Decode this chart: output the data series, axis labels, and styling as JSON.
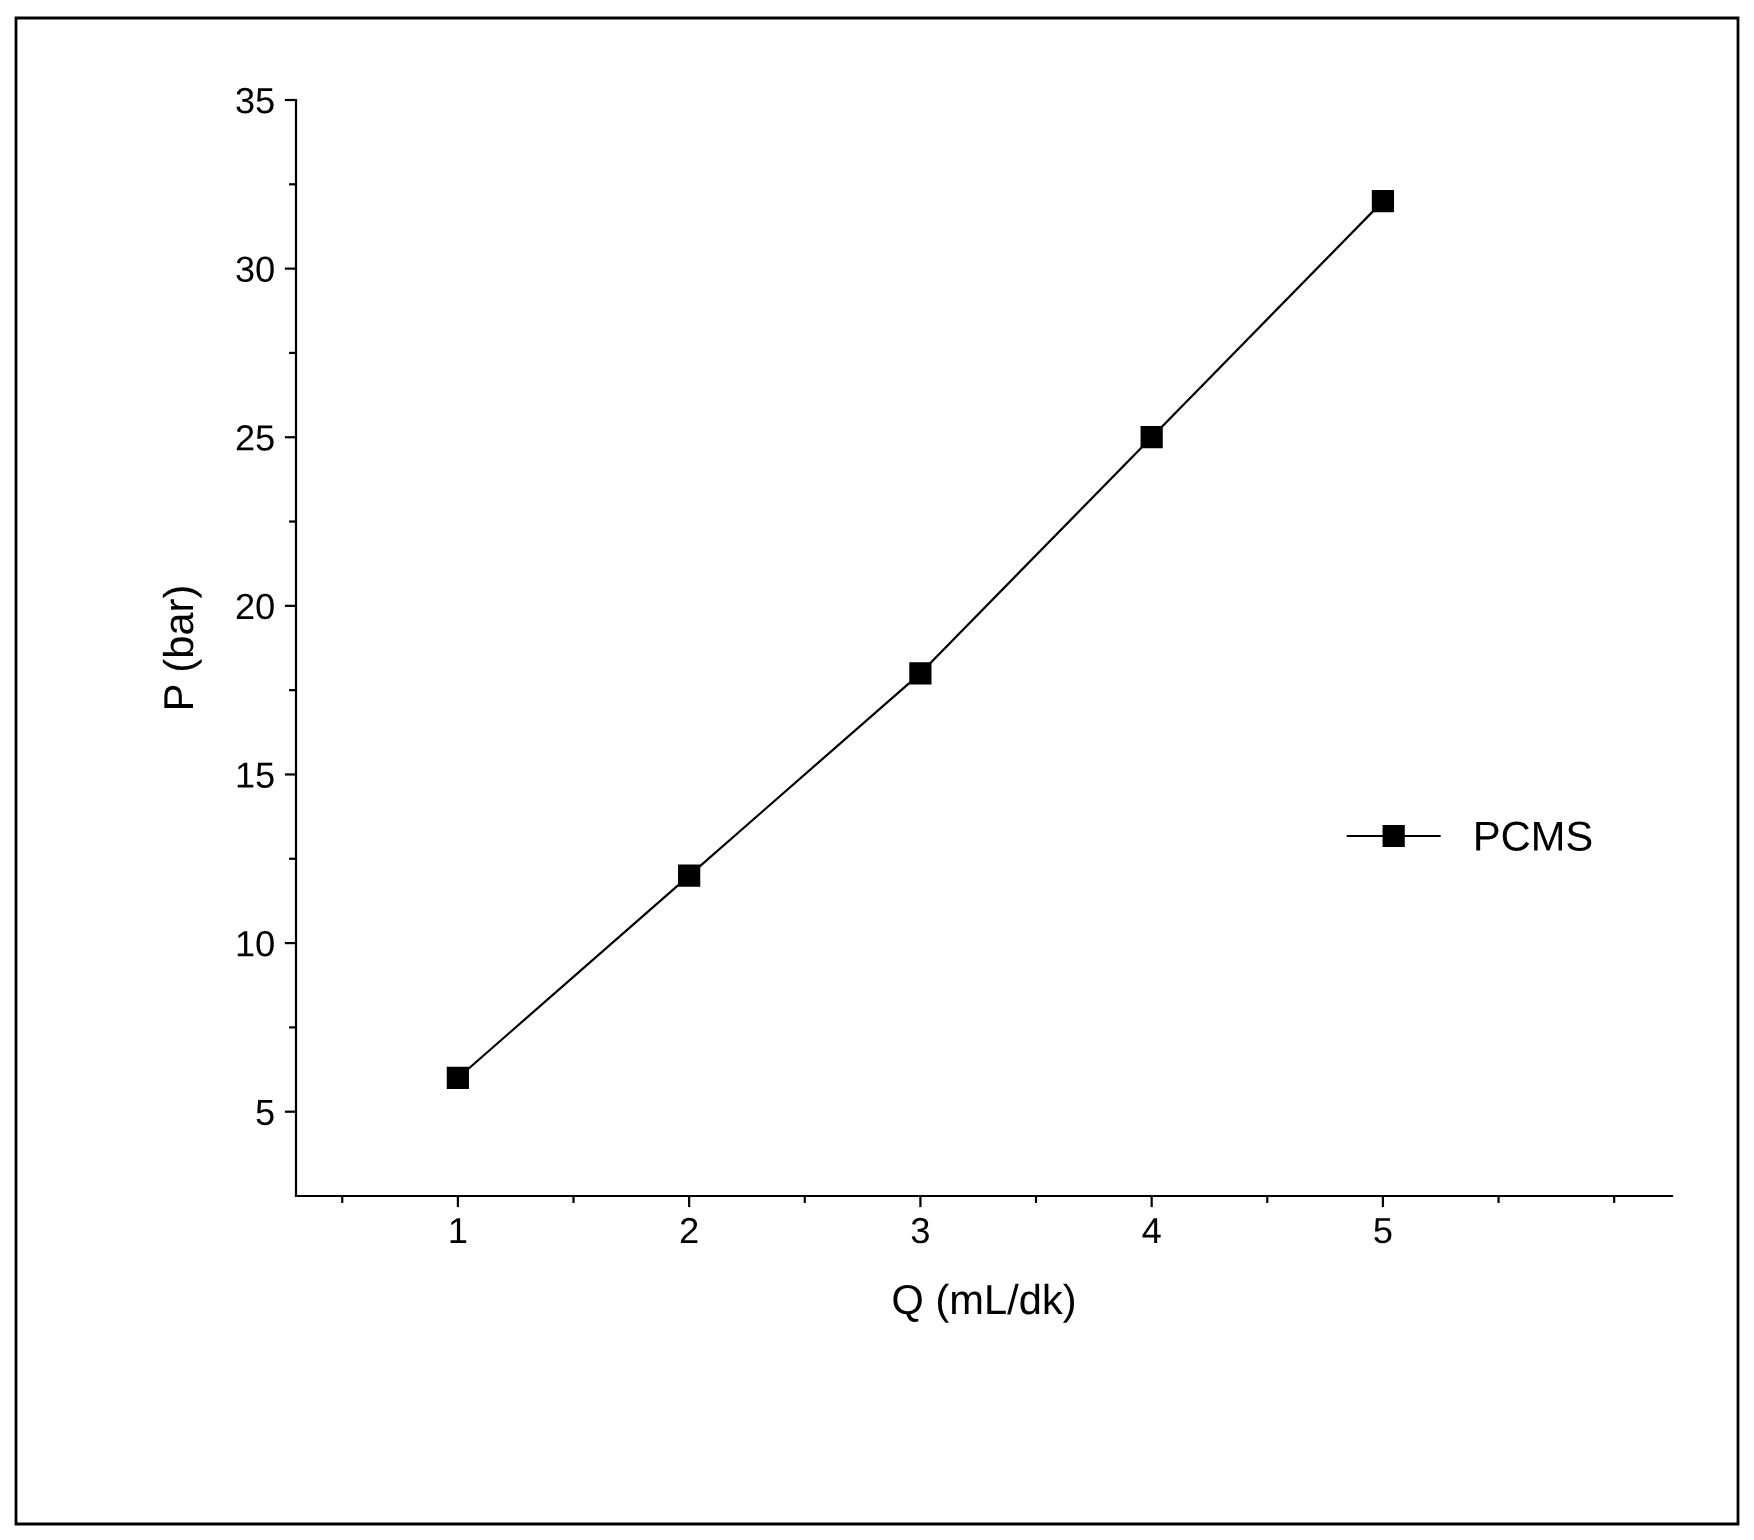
{
  "chart_data": {
    "type": "line",
    "xlabel": "Q (mL/dk)",
    "ylabel": "P (bar)",
    "x": [
      1,
      2,
      3,
      4,
      5
    ],
    "series": [
      {
        "name": "PCMS",
        "color": "#000000",
        "values": [
          6,
          12,
          18,
          25,
          32
        ]
      }
    ],
    "xlim": [
      0.3,
      6.25
    ],
    "ylim": [
      2.5,
      35
    ],
    "xticks": [
      {
        "value": 0.5,
        "label": null
      },
      1,
      {
        "value": 1.5,
        "label": null
      },
      2,
      {
        "value": 2.5,
        "label": null
      },
      3,
      {
        "value": 3.5,
        "label": null
      },
      4,
      {
        "value": 4.5,
        "label": null
      },
      5,
      {
        "value": 5.5,
        "label": null
      },
      {
        "value": 6,
        "label": null
      }
    ],
    "yticks": [
      5,
      {
        "value": 7.5,
        "label": null
      },
      10,
      {
        "value": 12.5,
        "label": null
      },
      15,
      {
        "value": 17.5,
        "label": null
      },
      20,
      {
        "value": 22.5,
        "label": null
      },
      25,
      {
        "value": 27.5,
        "label": null
      },
      30,
      {
        "value": 32.5,
        "label": null
      },
      35
    ],
    "marker": "square",
    "line_style": "solid",
    "grid": false,
    "legend": "center right"
  }
}
